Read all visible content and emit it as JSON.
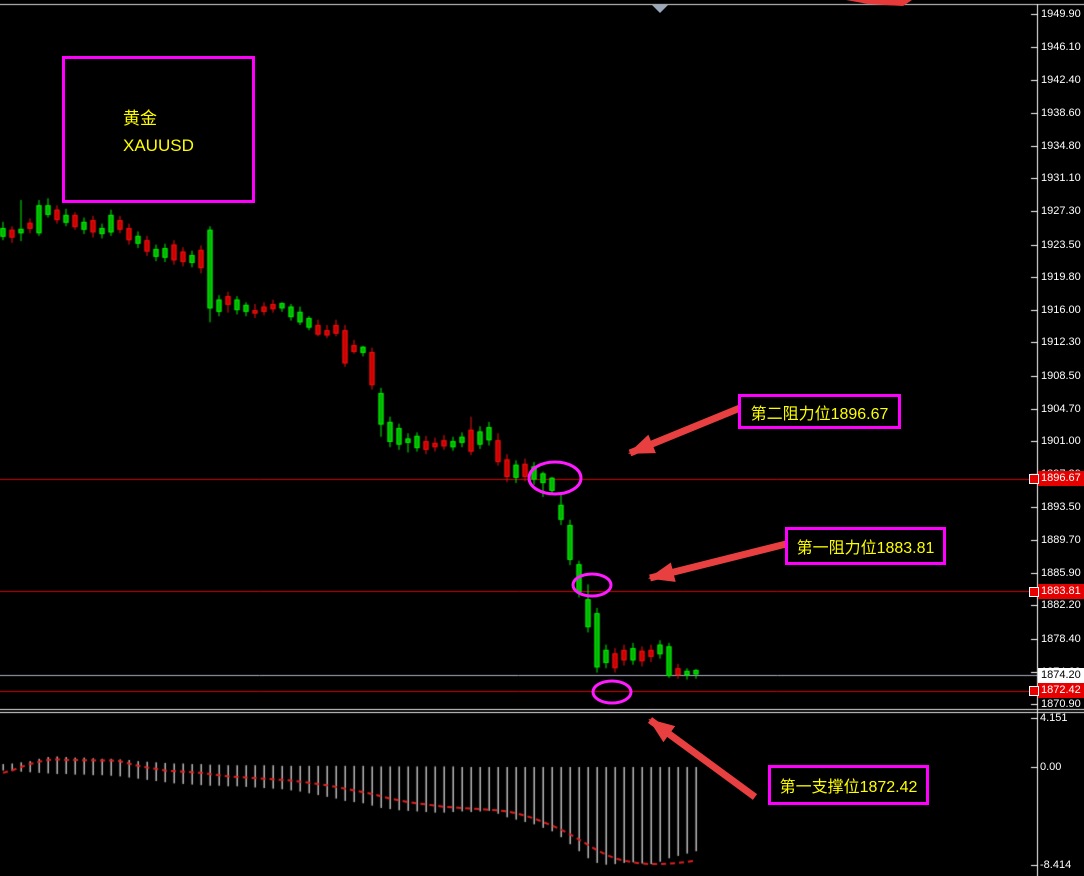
{
  "symbol_label": {
    "line1": "黄金",
    "line2": "XAUUSD"
  },
  "levels": [
    {
      "label": "第二阻力位1896.67",
      "price": "1896.67"
    },
    {
      "label": "第一阻力位1883.81",
      "price": "1883.81"
    },
    {
      "label": "第一支撑位1872.42",
      "price": "1872.42"
    }
  ],
  "current_price": "1874.20",
  "axis_ticks": [
    "1949.90",
    "1946.10",
    "1942.40",
    "1938.60",
    "1934.80",
    "1931.10",
    "1927.30",
    "1923.50",
    "1919.80",
    "1916.00",
    "1912.30",
    "1908.50",
    "1904.70",
    "1901.00",
    "1897.20",
    "1893.50",
    "1889.70",
    "1885.90",
    "1882.20",
    "1878.40",
    "1874.60",
    "1870.90"
  ],
  "indicator_ticks": [
    "4.151",
    "0.00",
    "-8.414"
  ],
  "colors": {
    "background": "#000000",
    "bull_fill": "#00b400",
    "bull_edge": "#00ee00",
    "bear_fill": "#cc0000",
    "bear_edge": "#ee1111",
    "level_line": "#d40000",
    "tag_bg": "#e60000",
    "current_line": "#aab2c4",
    "annotation": "#ff1aff",
    "arrow": "#e84040",
    "histogram": "#c8c8c8",
    "signal": "#e02020",
    "axis_line": "#ffffff",
    "frame_line": "#d8d8d8",
    "label_yellow": "#ffff00"
  },
  "chart_data": {
    "type": "candlestick",
    "symbol": "XAUUSD",
    "title": "黄金 XAUUSD",
    "price_axis_range": [
      1870.9,
      1949.9
    ],
    "indicator_axis": {
      "max": 4.151,
      "zero": 0.0,
      "min": -8.414
    },
    "levels": [
      1896.67,
      1883.81,
      1872.42
    ],
    "last_price": 1874.2,
    "candles": [
      [
        1924.4,
        1926.1,
        1924.0,
        1925.4
      ],
      [
        1925.2,
        1925.6,
        1923.7,
        1924.3
      ],
      [
        1924.8,
        1928.6,
        1923.9,
        1925.3
      ],
      [
        1926.0,
        1926.5,
        1924.8,
        1925.3
      ],
      [
        1924.8,
        1928.6,
        1924.5,
        1928.0
      ],
      [
        1926.9,
        1928.8,
        1926.6,
        1928.0
      ],
      [
        1927.5,
        1928.0,
        1925.9,
        1926.3
      ],
      [
        1926.0,
        1927.6,
        1925.6,
        1926.9
      ],
      [
        1926.9,
        1927.2,
        1925.2,
        1925.5
      ],
      [
        1925.2,
        1926.6,
        1924.7,
        1926.1
      ],
      [
        1926.3,
        1926.8,
        1924.3,
        1924.9
      ],
      [
        1924.7,
        1925.9,
        1924.2,
        1925.4
      ],
      [
        1924.9,
        1927.5,
        1924.5,
        1926.9
      ],
      [
        1926.3,
        1926.8,
        1924.8,
        1925.2
      ],
      [
        1925.4,
        1925.9,
        1923.5,
        1924.0
      ],
      [
        1923.6,
        1925.0,
        1923.1,
        1924.5
      ],
      [
        1924.0,
        1924.5,
        1922.2,
        1922.7
      ],
      [
        1922.1,
        1923.5,
        1921.6,
        1923.0
      ],
      [
        1922.0,
        1923.6,
        1921.5,
        1923.1
      ],
      [
        1923.5,
        1924.0,
        1921.2,
        1921.7
      ],
      [
        1922.7,
        1923.2,
        1921.0,
        1921.5
      ],
      [
        1921.4,
        1922.8,
        1920.9,
        1922.3
      ],
      [
        1922.9,
        1923.4,
        1920.2,
        1920.8
      ],
      [
        1916.2,
        1925.6,
        1914.6,
        1925.2
      ],
      [
        1915.8,
        1917.7,
        1915.3,
        1917.2
      ],
      [
        1917.6,
        1918.1,
        1915.7,
        1916.6
      ],
      [
        1916.0,
        1917.6,
        1915.5,
        1917.2
      ],
      [
        1915.8,
        1916.9,
        1915.3,
        1916.6
      ],
      [
        1916.0,
        1916.7,
        1915.1,
        1915.6
      ],
      [
        1916.4,
        1916.9,
        1915.4,
        1915.8
      ],
      [
        1916.7,
        1917.2,
        1915.7,
        1916.1
      ],
      [
        1916.2,
        1916.9,
        1915.8,
        1916.8
      ],
      [
        1915.2,
        1916.7,
        1914.8,
        1916.4
      ],
      [
        1914.6,
        1916.4,
        1914.3,
        1915.8
      ],
      [
        1914.0,
        1915.3,
        1913.7,
        1915.1
      ],
      [
        1914.3,
        1914.9,
        1913.0,
        1913.2
      ],
      [
        1913.7,
        1914.3,
        1912.8,
        1913.1
      ],
      [
        1914.3,
        1914.9,
        1913.0,
        1913.3
      ],
      [
        1913.7,
        1914.3,
        1909.5,
        1909.9
      ],
      [
        1912.0,
        1912.6,
        1911.0,
        1911.2
      ],
      [
        1911.1,
        1911.9,
        1910.7,
        1911.8
      ],
      [
        1911.2,
        1911.7,
        1906.9,
        1907.4
      ],
      [
        1902.9,
        1907.1,
        1901.5,
        1906.5
      ],
      [
        1900.9,
        1903.8,
        1900.3,
        1903.2
      ],
      [
        1900.6,
        1903.0,
        1900.0,
        1902.5
      ],
      [
        1900.8,
        1901.9,
        1899.7,
        1901.3
      ],
      [
        1900.2,
        1902.0,
        1899.8,
        1901.6
      ],
      [
        1901.0,
        1901.6,
        1899.5,
        1900.0
      ],
      [
        1900.8,
        1901.4,
        1899.8,
        1900.3
      ],
      [
        1901.1,
        1901.7,
        1900.0,
        1900.4
      ],
      [
        1900.3,
        1901.5,
        1899.9,
        1901.0
      ],
      [
        1900.8,
        1902.0,
        1900.3,
        1901.5
      ],
      [
        1902.3,
        1903.8,
        1899.4,
        1899.8
      ],
      [
        1900.6,
        1902.7,
        1900.1,
        1902.1
      ],
      [
        1901.1,
        1903.2,
        1900.5,
        1902.6
      ],
      [
        1901.1,
        1901.9,
        1898.2,
        1898.6
      ],
      [
        1898.9,
        1899.5,
        1896.3,
        1896.9
      ],
      [
        1896.8,
        1898.8,
        1896.2,
        1898.3
      ],
      [
        1898.4,
        1899.0,
        1896.4,
        1896.9
      ],
      [
        1896.6,
        1898.6,
        1896.0,
        1898.1
      ],
      [
        1896.2,
        1897.5,
        1894.6,
        1897.3
      ],
      [
        1895.3,
        1896.9,
        1894.9,
        1896.8
      ],
      [
        1892.0,
        1894.9,
        1891.4,
        1893.7
      ],
      [
        1887.4,
        1892.0,
        1886.8,
        1891.4
      ],
      [
        1883.7,
        1887.3,
        1883.1,
        1886.9
      ],
      [
        1879.7,
        1884.6,
        1879.1,
        1882.9
      ],
      [
        1875.1,
        1881.9,
        1874.5,
        1881.3
      ],
      [
        1875.6,
        1877.7,
        1875.0,
        1877.1
      ],
      [
        1876.7,
        1877.3,
        1874.5,
        1875.0
      ],
      [
        1877.1,
        1877.7,
        1875.3,
        1875.9
      ],
      [
        1875.9,
        1877.9,
        1875.4,
        1877.3
      ],
      [
        1877.0,
        1877.5,
        1875.2,
        1875.8
      ],
      [
        1877.1,
        1877.7,
        1875.7,
        1876.3
      ],
      [
        1876.6,
        1878.2,
        1876.1,
        1877.7
      ],
      [
        1874.1,
        1877.9,
        1873.9,
        1877.5
      ],
      [
        1875.0,
        1875.5,
        1873.8,
        1874.2
      ],
      [
        1874.2,
        1875.0,
        1873.7,
        1874.7
      ],
      [
        1874.3,
        1874.9,
        1873.8,
        1874.8
      ]
    ],
    "histogram_hi": [
      0.25,
      0.3,
      0.4,
      0.5,
      0.7,
      0.85,
      0.9,
      0.85,
      0.8,
      0.8,
      0.75,
      0.7,
      0.7,
      0.65,
      0.6,
      0.5,
      0.45,
      0.4,
      0.35,
      0.3,
      0.3,
      0.25,
      0.25,
      0.2,
      0.2,
      0.15,
      0.15,
      0.15,
      0.15,
      0.15,
      0.15,
      0.1,
      0.1,
      0.1,
      0.1,
      0.1,
      0.1,
      0.1,
      0.1,
      0.1,
      0.1,
      0.05,
      0.05,
      0.05,
      0.05,
      0.05,
      0.05,
      0.05,
      0.05,
      0.05,
      0.05,
      0,
      0,
      0,
      0,
      0,
      0,
      0,
      0,
      0,
      0,
      0,
      0,
      0,
      0,
      0,
      0,
      0,
      0,
      0,
      0,
      0,
      0,
      0,
      0,
      0,
      0,
      0
    ],
    "histogram_lo": [
      -0.3,
      -0.35,
      -0.4,
      -0.45,
      -0.5,
      -0.55,
      -0.6,
      -0.6,
      -0.65,
      -0.65,
      -0.7,
      -0.7,
      -0.75,
      -0.8,
      -0.9,
      -1.0,
      -1.1,
      -1.2,
      -1.3,
      -1.4,
      -1.45,
      -1.5,
      -1.55,
      -1.6,
      -1.6,
      -1.65,
      -1.65,
      -1.7,
      -1.75,
      -1.8,
      -1.85,
      -1.9,
      -2.0,
      -2.1,
      -2.25,
      -2.4,
      -2.55,
      -2.7,
      -2.9,
      -3.0,
      -3.1,
      -3.3,
      -3.5,
      -3.6,
      -3.7,
      -3.75,
      -3.8,
      -3.85,
      -3.9,
      -3.9,
      -3.85,
      -3.8,
      -3.85,
      -3.8,
      -3.75,
      -4.0,
      -4.3,
      -4.5,
      -4.7,
      -4.9,
      -5.2,
      -5.5,
      -6.0,
      -6.6,
      -7.2,
      -7.8,
      -8.2,
      -8.35,
      -8.3,
      -8.2,
      -8.15,
      -8.25,
      -8.3,
      -8.1,
      -7.8,
      -7.6,
      -7.4,
      -7.2
    ],
    "signal": [
      -0.5,
      -0.3,
      0.0,
      0.25,
      0.45,
      0.6,
      0.65,
      0.6,
      0.6,
      0.58,
      0.57,
      0.55,
      0.55,
      0.5,
      0.3,
      0.1,
      -0.05,
      -0.15,
      -0.3,
      -0.35,
      -0.4,
      -0.45,
      -0.5,
      -0.6,
      -0.7,
      -0.8,
      -0.85,
      -0.9,
      -0.95,
      -1.0,
      -1.05,
      -1.1,
      -1.15,
      -1.25,
      -1.35,
      -1.45,
      -1.55,
      -1.7,
      -1.85,
      -2.0,
      -2.15,
      -2.3,
      -2.5,
      -2.7,
      -2.85,
      -3.0,
      -3.1,
      -3.2,
      -3.3,
      -3.4,
      -3.45,
      -3.5,
      -3.55,
      -3.6,
      -3.65,
      -3.7,
      -3.8,
      -3.95,
      -4.15,
      -4.4,
      -4.7,
      -5.0,
      -5.35,
      -5.75,
      -6.2,
      -6.65,
      -7.1,
      -7.5,
      -7.8,
      -8.0,
      -8.15,
      -8.25,
      -8.3,
      -8.3,
      -8.25,
      -8.2,
      -8.1,
      -8.0
    ]
  }
}
